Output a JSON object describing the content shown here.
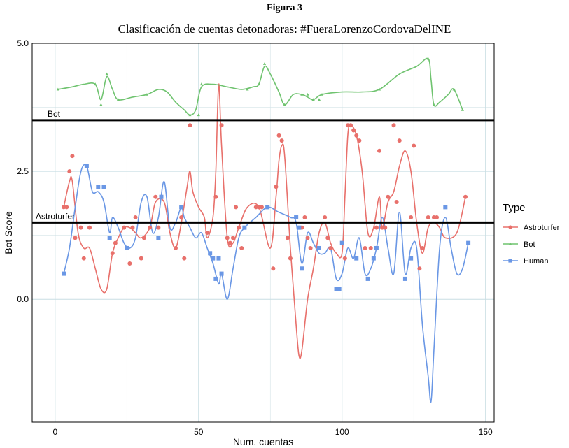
{
  "figure_label": "Figura 3",
  "chart_data": {
    "type": "scatter",
    "title": "Clasificación de cuentas detonadoras: #FueraLorenzoCordovaDelINE",
    "xlabel": "Num. cuentas",
    "ylabel": "Bot Score",
    "xlim": [
      -8,
      153
    ],
    "ylim": [
      -2.4,
      5.0
    ],
    "x_ticks": [
      0,
      50,
      100,
      150
    ],
    "y_ticks": [
      0.0,
      2.5,
      5.0
    ],
    "y_tick_labels": [
      "0.0",
      "2.5",
      "5.0"
    ],
    "grid": true,
    "legend": {
      "title": "Type",
      "position": "right"
    },
    "reference_lines": [
      {
        "label": "Bot",
        "y": 3.5
      },
      {
        "label": "Astroturfer",
        "y": 1.5
      }
    ],
    "series": [
      {
        "name": "Astroturfer",
        "color": "#E8706B",
        "marker": "circle",
        "points": [
          [
            3,
            1.8
          ],
          [
            4,
            1.8
          ],
          [
            5,
            2.5
          ],
          [
            6,
            2.8
          ],
          [
            7,
            1.2
          ],
          [
            9,
            1.4
          ],
          [
            10,
            0.8
          ],
          [
            12,
            1.4
          ],
          [
            20,
            0.9
          ],
          [
            21,
            1.1
          ],
          [
            24,
            1.4
          ],
          [
            26,
            0.7
          ],
          [
            27,
            1.4
          ],
          [
            28,
            1.6
          ],
          [
            30,
            0.8
          ],
          [
            31,
            1.2
          ],
          [
            33,
            1.4
          ],
          [
            35,
            2.0
          ],
          [
            36,
            1.4
          ],
          [
            42,
            1.0
          ],
          [
            44,
            1.6
          ],
          [
            45,
            0.8
          ],
          [
            47,
            3.4
          ],
          [
            53,
            1.3
          ],
          [
            56,
            2.0
          ],
          [
            58,
            3.4
          ],
          [
            60,
            1.2
          ],
          [
            61,
            1.1
          ],
          [
            62,
            1.2
          ],
          [
            63,
            1.8
          ],
          [
            64,
            1.4
          ],
          [
            65,
            1.0
          ],
          [
            70,
            1.8
          ],
          [
            71,
            1.8
          ],
          [
            72,
            1.8
          ],
          [
            76,
            0.6
          ],
          [
            77,
            2.2
          ],
          [
            78,
            3.2
          ],
          [
            79,
            3.1
          ],
          [
            81,
            1.2
          ],
          [
            82,
            0.8
          ],
          [
            86,
            1.4
          ],
          [
            87,
            1.6
          ],
          [
            88,
            1.2
          ],
          [
            89,
            1.0
          ],
          [
            94,
            1.6
          ],
          [
            95,
            1.2
          ],
          [
            96,
            1.0
          ],
          [
            101,
            0.8
          ],
          [
            102,
            3.4
          ],
          [
            103,
            3.4
          ],
          [
            104,
            3.3
          ],
          [
            105,
            3.2
          ],
          [
            106,
            3.1
          ],
          [
            108,
            1.0
          ],
          [
            110,
            1.0
          ],
          [
            112,
            1.4
          ],
          [
            113,
            2.9
          ],
          [
            114,
            1.4
          ],
          [
            115,
            1.4
          ],
          [
            116,
            2.0
          ],
          [
            118,
            3.4
          ],
          [
            119,
            1.9
          ],
          [
            120,
            3.1
          ],
          [
            124,
            1.6
          ],
          [
            125,
            3.0
          ],
          [
            127,
            0.6
          ],
          [
            128,
            1.0
          ],
          [
            130,
            1.6
          ],
          [
            132,
            1.6
          ],
          [
            133,
            1.6
          ],
          [
            143,
            2.0
          ]
        ],
        "trend": [
          [
            3,
            1.8
          ],
          [
            5,
            2.3
          ],
          [
            6,
            2.3
          ],
          [
            8,
            1.3
          ],
          [
            10,
            1.0
          ],
          [
            12,
            1.0
          ],
          [
            14,
            0.6
          ],
          [
            16,
            0.2
          ],
          [
            18,
            0.2
          ],
          [
            20,
            0.9
          ],
          [
            22,
            1.2
          ],
          [
            24,
            1.4
          ],
          [
            26,
            1.4
          ],
          [
            28,
            1.3
          ],
          [
            30,
            1.2
          ],
          [
            33,
            1.4
          ],
          [
            35,
            1.9
          ],
          [
            38,
            1.9
          ],
          [
            40,
            1.3
          ],
          [
            42,
            1.0
          ],
          [
            44,
            1.5
          ],
          [
            46,
            2.2
          ],
          [
            47,
            2.5
          ],
          [
            48,
            2.1
          ],
          [
            50,
            1.8
          ],
          [
            52,
            1.6
          ],
          [
            53,
            1.2
          ],
          [
            55,
            1.6
          ],
          [
            56,
            2.5
          ],
          [
            57,
            4.2
          ],
          [
            58,
            3.0
          ],
          [
            60,
            1.2
          ],
          [
            62,
            1.1
          ],
          [
            64,
            1.4
          ],
          [
            67,
            1.8
          ],
          [
            71,
            1.8
          ],
          [
            75,
            1.0
          ],
          [
            77,
            2.0
          ],
          [
            78,
            2.7
          ],
          [
            79,
            3.0
          ],
          [
            80,
            2.8
          ],
          [
            82,
            1.0
          ],
          [
            84,
            -0.5
          ],
          [
            85,
            -1.1
          ],
          [
            86,
            -1.0
          ],
          [
            88,
            0.0
          ],
          [
            90,
            0.6
          ],
          [
            92,
            1.3
          ],
          [
            94,
            1.5
          ],
          [
            96,
            1.1
          ],
          [
            98,
            0.9
          ],
          [
            100,
            0.9
          ],
          [
            101,
            2.0
          ],
          [
            102,
            3.2
          ],
          [
            103,
            3.4
          ],
          [
            105,
            3.2
          ],
          [
            107,
            2.5
          ],
          [
            109,
            1.3
          ],
          [
            111,
            1.4
          ],
          [
            113,
            2.0
          ],
          [
            114,
            1.4
          ],
          [
            116,
            1.9
          ],
          [
            118,
            2.1
          ],
          [
            120,
            2.6
          ],
          [
            122,
            2.9
          ],
          [
            124,
            2.5
          ],
          [
            126,
            1.5
          ],
          [
            128,
            0.9
          ],
          [
            130,
            1.4
          ],
          [
            132,
            1.5
          ],
          [
            134,
            1.4
          ],
          [
            136,
            1.2
          ],
          [
            140,
            1.3
          ],
          [
            143,
            2.0
          ]
        ]
      },
      {
        "name": "Bot",
        "color": "#6FC36F",
        "marker": "triangle",
        "points": [
          [
            1,
            4.1
          ],
          [
            14,
            4.2
          ],
          [
            16,
            3.8
          ],
          [
            18,
            4.4
          ],
          [
            22,
            3.9
          ],
          [
            32,
            4.0
          ],
          [
            47,
            3.6
          ],
          [
            50,
            3.6
          ],
          [
            51,
            4.2
          ],
          [
            67,
            4.1
          ],
          [
            71,
            4.2
          ],
          [
            73,
            4.6
          ],
          [
            80,
            3.8
          ],
          [
            86,
            4.0
          ],
          [
            88,
            4.0
          ],
          [
            90,
            3.9
          ],
          [
            92,
            3.9
          ],
          [
            93,
            4.0
          ],
          [
            113,
            4.1
          ],
          [
            130,
            4.7
          ],
          [
            132,
            3.8
          ],
          [
            139,
            4.1
          ],
          [
            142,
            3.7
          ]
        ],
        "trend": [
          [
            1,
            4.1
          ],
          [
            6,
            4.15
          ],
          [
            10,
            4.2
          ],
          [
            14,
            4.2
          ],
          [
            16,
            3.9
          ],
          [
            18,
            4.35
          ],
          [
            20,
            4.1
          ],
          [
            22,
            3.9
          ],
          [
            27,
            3.95
          ],
          [
            32,
            4.0
          ],
          [
            36,
            4.1
          ],
          [
            39,
            4.05
          ],
          [
            42,
            3.85
          ],
          [
            45,
            3.7
          ],
          [
            47,
            3.6
          ],
          [
            49,
            3.7
          ],
          [
            51,
            4.15
          ],
          [
            55,
            4.2
          ],
          [
            60,
            4.15
          ],
          [
            65,
            4.1
          ],
          [
            69,
            4.15
          ],
          [
            71,
            4.2
          ],
          [
            73,
            4.55
          ],
          [
            75,
            4.4
          ],
          [
            78,
            4.05
          ],
          [
            80,
            3.8
          ],
          [
            83,
            4.0
          ],
          [
            86,
            4.0
          ],
          [
            88,
            3.95
          ],
          [
            90,
            3.9
          ],
          [
            93,
            4.0
          ],
          [
            100,
            4.05
          ],
          [
            107,
            4.05
          ],
          [
            113,
            4.1
          ],
          [
            120,
            4.4
          ],
          [
            126,
            4.55
          ],
          [
            130,
            4.7
          ],
          [
            131,
            4.3
          ],
          [
            132,
            3.8
          ],
          [
            134,
            3.85
          ],
          [
            137,
            4.0
          ],
          [
            139,
            4.1
          ],
          [
            142,
            3.7
          ]
        ]
      },
      {
        "name": "Human",
        "color": "#6A97E5",
        "marker": "square",
        "points": [
          [
            3,
            0.5
          ],
          [
            11,
            2.6
          ],
          [
            15,
            2.2
          ],
          [
            17,
            2.2
          ],
          [
            19,
            1.2
          ],
          [
            25,
            1.0
          ],
          [
            36,
            1.2
          ],
          [
            37,
            2.0
          ],
          [
            44,
            1.8
          ],
          [
            54,
            0.9
          ],
          [
            55,
            0.8
          ],
          [
            56,
            0.4
          ],
          [
            57,
            0.8
          ],
          [
            58,
            0.5
          ],
          [
            66,
            1.4
          ],
          [
            74,
            1.8
          ],
          [
            84,
            1.6
          ],
          [
            85,
            1.4
          ],
          [
            86,
            0.6
          ],
          [
            92,
            1.0
          ],
          [
            98,
            0.2
          ],
          [
            99,
            0.2
          ],
          [
            100,
            1.1
          ],
          [
            105,
            0.8
          ],
          [
            109,
            0.4
          ],
          [
            111,
            0.8
          ],
          [
            112,
            1.0
          ],
          [
            122,
            0.4
          ],
          [
            124,
            0.8
          ],
          [
            136,
            1.8
          ],
          [
            144,
            1.1
          ]
        ],
        "trend": [
          [
            3,
            0.5
          ],
          [
            5,
            1.0
          ],
          [
            7,
            1.8
          ],
          [
            9,
            2.5
          ],
          [
            11,
            2.6
          ],
          [
            13,
            2.1
          ],
          [
            15,
            2.1
          ],
          [
            17,
            1.9
          ],
          [
            19,
            1.3
          ],
          [
            20,
            1.6
          ],
          [
            22,
            1.4
          ],
          [
            24,
            1.1
          ],
          [
            26,
            1.0
          ],
          [
            28,
            1.2
          ],
          [
            30,
            1.9
          ],
          [
            32,
            2.0
          ],
          [
            34,
            1.3
          ],
          [
            36,
            1.6
          ],
          [
            38,
            2.3
          ],
          [
            40,
            1.4
          ],
          [
            42,
            1.5
          ],
          [
            44,
            1.8
          ],
          [
            45,
            1.6
          ],
          [
            47,
            1.4
          ],
          [
            49,
            1.2
          ],
          [
            51,
            1.3
          ],
          [
            53,
            1.0
          ],
          [
            55,
            0.7
          ],
          [
            57,
            0.3
          ],
          [
            58,
            0.5
          ],
          [
            60,
            0.0
          ],
          [
            62,
            0.6
          ],
          [
            64,
            1.2
          ],
          [
            66,
            1.4
          ],
          [
            70,
            1.6
          ],
          [
            74,
            1.8
          ],
          [
            78,
            1.7
          ],
          [
            82,
            1.6
          ],
          [
            84,
            1.5
          ],
          [
            86,
            0.7
          ],
          [
            88,
            1.3
          ],
          [
            90,
            1.1
          ],
          [
            92,
            0.9
          ],
          [
            94,
            0.9
          ],
          [
            96,
            1.0
          ],
          [
            98,
            0.4
          ],
          [
            100,
            0.5
          ],
          [
            102,
            1.0
          ],
          [
            104,
            0.8
          ],
          [
            106,
            1.2
          ],
          [
            108,
            0.5
          ],
          [
            110,
            0.6
          ],
          [
            112,
            1.0
          ],
          [
            114,
            1.6
          ],
          [
            116,
            1.0
          ],
          [
            118,
            0.5
          ],
          [
            120,
            1.7
          ],
          [
            122,
            0.5
          ],
          [
            124,
            1.0
          ],
          [
            126,
            1.0
          ],
          [
            128,
            -0.5
          ],
          [
            130,
            -1.5
          ],
          [
            131,
            -2.0
          ],
          [
            132,
            -1.0
          ],
          [
            134,
            1.0
          ],
          [
            136,
            1.6
          ],
          [
            138,
            1.0
          ],
          [
            140,
            0.5
          ],
          [
            142,
            0.6
          ],
          [
            144,
            1.1
          ]
        ]
      }
    ]
  }
}
